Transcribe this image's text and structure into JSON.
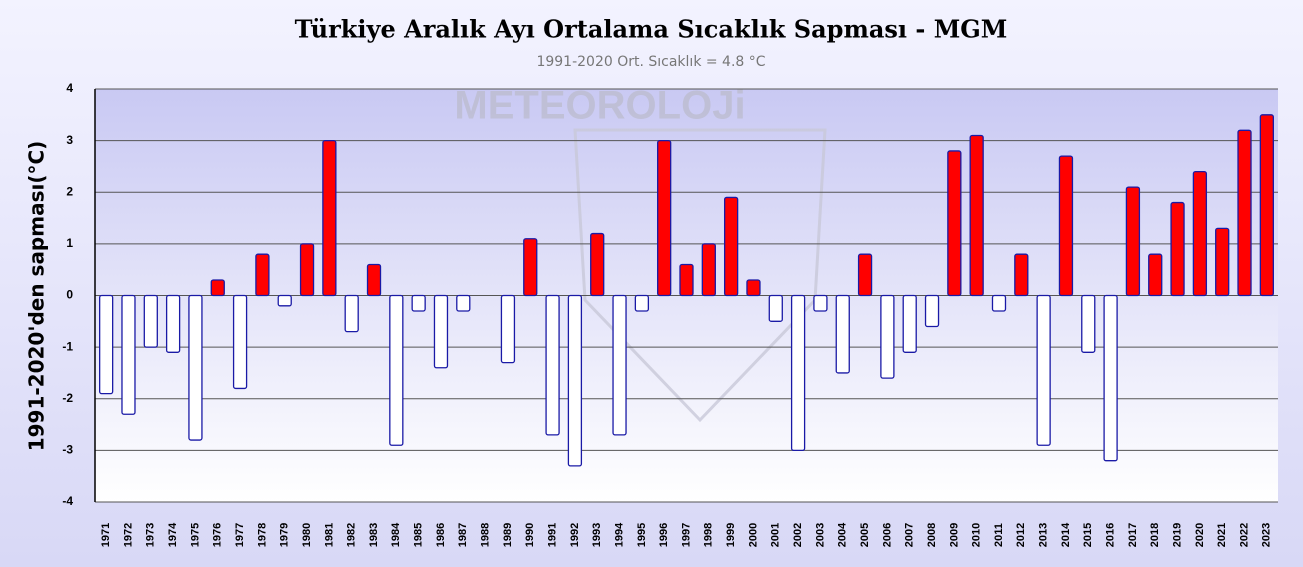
{
  "chart_data": {
    "type": "bar",
    "title": "Türkiye Aralık Ayı Ortalama Sıcaklık Sapması - MGM",
    "subtitle": "1991-2020 Ort. Sıcaklık = 4.8 °C",
    "watermark": "METEOROLOJi",
    "y_label": "1991-2020'den sapması(°C)",
    "categories": [
      "1971",
      "1972",
      "1973",
      "1974",
      "1975",
      "1976",
      "1977",
      "1978",
      "1979",
      "1980",
      "1981",
      "1982",
      "1983",
      "1984",
      "1985",
      "1986",
      "1987",
      "1988",
      "1989",
      "1990",
      "1991",
      "1992",
      "1993",
      "1994",
      "1995",
      "1996",
      "1997",
      "1998",
      "1999",
      "2000",
      "2001",
      "2002",
      "2003",
      "2004",
      "2005",
      "2006",
      "2007",
      "2008",
      "2009",
      "2010",
      "2011",
      "2012",
      "2013",
      "2014",
      "2015",
      "2016",
      "2017",
      "2018",
      "2019",
      "2020",
      "2021",
      "2022",
      "2023"
    ],
    "values": [
      -1.9,
      -2.3,
      -1.0,
      -1.1,
      -2.8,
      0.3,
      -1.8,
      0.8,
      -0.2,
      1.0,
      3.0,
      -0.7,
      0.6,
      -2.9,
      -0.3,
      -1.4,
      -0.3,
      0.0,
      -1.3,
      1.1,
      -2.7,
      -3.3,
      1.2,
      -2.7,
      -0.3,
      3.0,
      0.6,
      1.0,
      1.9,
      0.3,
      -0.5,
      -3.0,
      -0.3,
      -1.5,
      0.8,
      -1.6,
      -1.1,
      -0.6,
      2.8,
      3.1,
      -0.3,
      0.8,
      -2.9,
      2.7,
      -1.1,
      -3.2,
      2.1,
      0.8,
      1.8,
      2.4,
      1.3,
      3.2,
      3.5
    ],
    "positive_color": "#ff0000",
    "negative_color": "#ffffff",
    "border_color": "#1a1aa6",
    "ylim": [
      -4,
      4
    ],
    "yticks": [
      -4,
      -3,
      -2,
      -1,
      0,
      1,
      2,
      3,
      4
    ],
    "grid": true
  }
}
